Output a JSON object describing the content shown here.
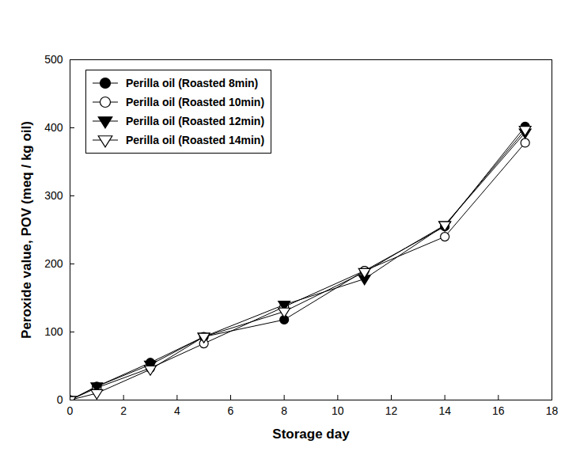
{
  "chart_data": {
    "type": "line",
    "x_label": "Storage day",
    "y_label": "Peroxide value, POV (meq / kg oil)",
    "x": [
      0,
      1,
      3,
      5,
      8,
      11,
      14,
      17
    ],
    "series": [
      {
        "name": "Perilla oil (Roasted 8min)",
        "color": "#000000",
        "marker": "circle",
        "values": [
          0,
          20,
          55,
          93,
          118,
          190,
          255,
          402
        ]
      },
      {
        "name": "Perilla oil (Roasted 10min)",
        "color": "#000000",
        "marker": "circle-open",
        "values": [
          0,
          18,
          47,
          83,
          137,
          190,
          240,
          378
        ]
      },
      {
        "name": "Perilla oil (Roasted 12min)",
        "color": "#000000",
        "marker": "triangle-down",
        "values": [
          0,
          20,
          52,
          93,
          140,
          178,
          257,
          393
        ]
      },
      {
        "name": "Perilla oil (Roasted 14min)",
        "color": "#000000",
        "marker": "triangle-down-open",
        "values": [
          0,
          10,
          45,
          93,
          130,
          188,
          257,
          397
        ]
      }
    ],
    "xlim": [
      0,
      18
    ],
    "xticks": [
      0,
      2,
      4,
      6,
      8,
      10,
      12,
      14,
      16,
      18
    ],
    "ylim": [
      0,
      500
    ],
    "yticks": [
      0,
      100,
      200,
      300,
      400,
      500
    ],
    "legend": "top-left",
    "grid": false
  }
}
